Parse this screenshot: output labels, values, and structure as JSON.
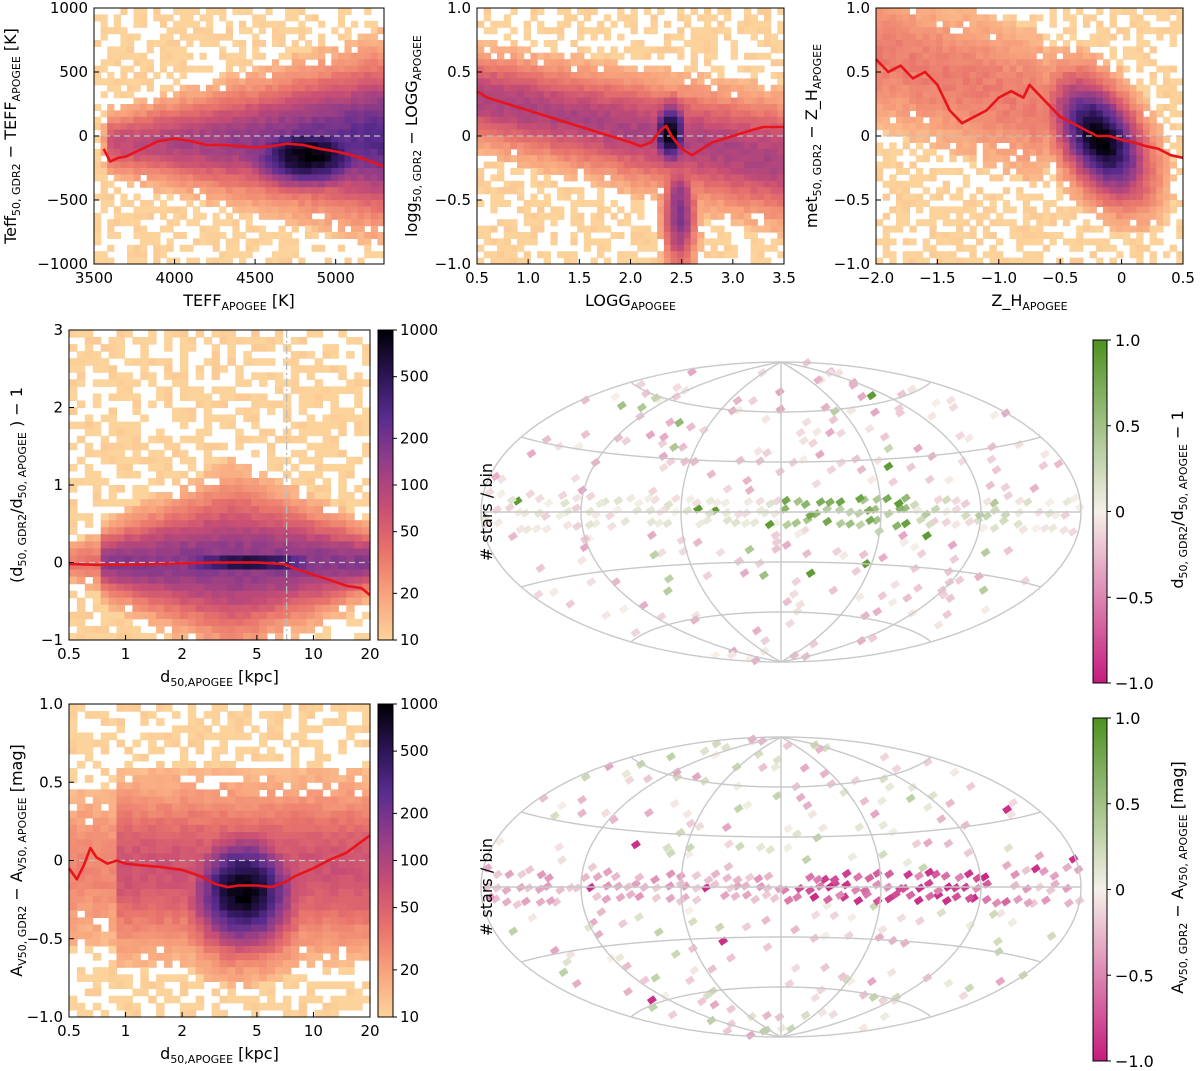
{
  "colors": {
    "density_ramp": [
      "#fcd39b",
      "#f8a47d",
      "#e8736b",
      "#c84e74",
      "#943d88",
      "#5a2c8f",
      "#2b1454",
      "#000004"
    ],
    "diverging_neg": "#c51b7d",
    "diverging_mid": "#f5f0e8",
    "diverging_pos": "#4d9221",
    "trend_line": "#e8141b",
    "grid_line": "#c8c8c8"
  },
  "chart_data": [
    {
      "id": "teff",
      "type": "heatmap",
      "xlabel": "TEFF",
      "xlabel_sub": "APOGEE",
      "xlabel_unit": "[K]",
      "ylabel": "Teff",
      "ylabel_sub": "50, GDR2",
      "ylabel_rest": " − TEFF",
      "ylabel_sub2": "APOGEE",
      "ylabel_unit": "[K]",
      "xlim": [
        3500,
        5300
      ],
      "ylim": [
        -1000,
        1000
      ],
      "xticks": [
        3500,
        4000,
        4500,
        5000
      ],
      "xtick_labels": [
        "3500",
        "4000",
        "4500",
        "5000"
      ],
      "yticks": [
        -1000,
        -500,
        0,
        500,
        1000
      ],
      "ytick_labels": [
        "−1000",
        "−500",
        "0",
        "500",
        "1000"
      ],
      "trend": {
        "x": [
          3560,
          3600,
          3650,
          3700,
          3800,
          3900,
          4000,
          4100,
          4200,
          4300,
          4400,
          4500,
          4600,
          4700,
          4800,
          4900,
          5000,
          5100,
          5200,
          5300
        ],
        "y": [
          -100,
          -200,
          -170,
          -160,
          -100,
          -40,
          -20,
          -40,
          -70,
          -70,
          -80,
          -90,
          -80,
          -60,
          -70,
          -100,
          -120,
          -150,
          -190,
          -240
        ]
      }
    },
    {
      "id": "logg",
      "type": "heatmap",
      "xlabel": "LOGG",
      "xlabel_sub": "APOGEE",
      "xlabel_unit": "",
      "ylabel": "logg",
      "ylabel_sub": "50, GDR2",
      "ylabel_rest": " − LOGG",
      "ylabel_sub2": "APOGEE",
      "ylabel_unit": "",
      "xlim": [
        0.5,
        3.5
      ],
      "ylim": [
        -1.0,
        1.0
      ],
      "xticks": [
        0.5,
        1.0,
        1.5,
        2.0,
        2.5,
        3.0,
        3.5
      ],
      "xtick_labels": [
        "0.5",
        "1.0",
        "1.5",
        "2.0",
        "2.5",
        "3.0",
        "3.5"
      ],
      "yticks": [
        -1.0,
        -0.5,
        0,
        0.5,
        1.0
      ],
      "ytick_labels": [
        "−1.0",
        "−0.5",
        "0",
        "0.5",
        "1.0"
      ],
      "trend": {
        "x": [
          0.5,
          0.6,
          0.8,
          1.0,
          1.2,
          1.4,
          1.6,
          1.8,
          2.0,
          2.1,
          2.2,
          2.3,
          2.35,
          2.4,
          2.5,
          2.6,
          2.7,
          2.8,
          3.0,
          3.2,
          3.3,
          3.5
        ],
        "y": [
          0.35,
          0.3,
          0.25,
          0.2,
          0.15,
          0.1,
          0.05,
          0.0,
          -0.05,
          -0.08,
          -0.05,
          0.05,
          0.08,
          0.0,
          -0.1,
          -0.15,
          -0.1,
          -0.05,
          0.0,
          0.05,
          0.07,
          0.07
        ]
      }
    },
    {
      "id": "met",
      "type": "heatmap",
      "xlabel": "Z_H",
      "xlabel_sub": "APOGEE",
      "xlabel_unit": "",
      "ylabel": "met",
      "ylabel_sub": "50, GDR2",
      "ylabel_rest": " − Z_H",
      "ylabel_sub2": "APOGEE",
      "ylabel_unit": "",
      "xlim": [
        -2.0,
        0.5
      ],
      "ylim": [
        -1.0,
        1.0
      ],
      "xticks": [
        -2.0,
        -1.5,
        -1.0,
        -0.5,
        0,
        0.5
      ],
      "xtick_labels": [
        "−2.0",
        "−1.5",
        "−1.0",
        "−0.5",
        "0",
        "0.5"
      ],
      "yticks": [
        -1.0,
        -0.5,
        0,
        0.5,
        1.0
      ],
      "ytick_labels": [
        "−1.0",
        "−0.5",
        "0",
        "0.5",
        "1.0"
      ],
      "trend": {
        "x": [
          -2.0,
          -1.9,
          -1.8,
          -1.7,
          -1.6,
          -1.5,
          -1.4,
          -1.3,
          -1.2,
          -1.1,
          -1.0,
          -0.9,
          -0.8,
          -0.75,
          -0.7,
          -0.6,
          -0.5,
          -0.4,
          -0.3,
          -0.2,
          -0.1,
          0.0,
          0.1,
          0.2,
          0.3,
          0.4,
          0.5
        ],
        "y": [
          0.6,
          0.5,
          0.55,
          0.45,
          0.5,
          0.4,
          0.2,
          0.1,
          0.15,
          0.2,
          0.3,
          0.35,
          0.3,
          0.4,
          0.35,
          0.25,
          0.15,
          0.1,
          0.05,
          0.0,
          0.0,
          -0.03,
          -0.05,
          -0.08,
          -0.1,
          -0.15,
          -0.17
        ]
      }
    },
    {
      "id": "dist",
      "type": "heatmap",
      "xlabel": "d",
      "xlabel_sub": "50,APOGEE",
      "xlabel_unit": "[kpc]",
      "ylabel": "(d",
      "ylabel_sub": "50, GDR2",
      "ylabel_rest": "/d",
      "ylabel_sub2": "50, APOGEE",
      "ylabel_unit": ") − 1",
      "xscale": "log",
      "xlim": [
        0.5,
        20
      ],
      "ylim": [
        -1,
        3
      ],
      "xticks": [
        0.5,
        1,
        2,
        5,
        10,
        20
      ],
      "xtick_labels": [
        "0.5",
        "1",
        "2",
        "5",
        "10",
        "20"
      ],
      "yticks": [
        -1,
        0,
        1,
        2,
        3
      ],
      "ytick_labels": [
        "−1",
        "0",
        "1",
        "2",
        "3"
      ],
      "vline": 7.2,
      "trend": {
        "x": [
          0.5,
          0.7,
          1,
          1.5,
          2,
          3,
          4,
          5,
          6,
          7,
          8,
          9,
          10,
          12,
          15,
          18,
          20
        ],
        "y": [
          -0.02,
          -0.03,
          -0.03,
          -0.02,
          -0.01,
          0.0,
          0.0,
          0.0,
          -0.01,
          -0.02,
          -0.08,
          -0.12,
          -0.16,
          -0.22,
          -0.3,
          -0.33,
          -0.42
        ]
      },
      "colorbar": {
        "scale": "log",
        "range": [
          10,
          1000
        ],
        "ticks": [
          10,
          20,
          50,
          100,
          200,
          500,
          1000
        ],
        "tick_labels": [
          "10",
          "20",
          "50",
          "100",
          "200",
          "500",
          "1000"
        ]
      }
    },
    {
      "id": "av",
      "type": "heatmap",
      "xlabel": "d",
      "xlabel_sub": "50,APOGEE",
      "xlabel_unit": "[kpc]",
      "ylabel": "A",
      "ylabel_sub": "V50, GDR2",
      "ylabel_rest": " − A",
      "ylabel_sub2": "V50, APOGEE",
      "ylabel_unit": "[mag]",
      "xscale": "log",
      "xlim": [
        0.5,
        20
      ],
      "ylim": [
        -1.0,
        1.0
      ],
      "xticks": [
        0.5,
        1,
        2,
        5,
        10,
        20
      ],
      "xtick_labels": [
        "0.5",
        "1",
        "2",
        "5",
        "10",
        "20"
      ],
      "yticks": [
        -1.0,
        -0.5,
        0,
        0.5,
        1.0
      ],
      "ytick_labels": [
        "−1.0",
        "−0.5",
        "0",
        "0.5",
        "1.0"
      ],
      "trend": {
        "x": [
          0.5,
          0.55,
          0.6,
          0.65,
          0.7,
          0.8,
          0.9,
          1.0,
          1.2,
          1.5,
          2,
          2.5,
          3,
          3.5,
          4,
          5,
          6,
          7,
          8,
          10,
          12,
          15,
          18,
          20
        ],
        "y": [
          -0.05,
          -0.12,
          -0.03,
          0.08,
          0.02,
          -0.02,
          0.0,
          -0.02,
          -0.03,
          -0.04,
          -0.06,
          -0.1,
          -0.15,
          -0.17,
          -0.16,
          -0.16,
          -0.17,
          -0.14,
          -0.1,
          -0.05,
          0.0,
          0.05,
          0.12,
          0.16
        ]
      },
      "colorbar": {
        "scale": "log",
        "range": [
          10,
          1000
        ],
        "ticks": [
          10,
          20,
          50,
          100,
          200,
          500,
          1000
        ],
        "tick_labels": [
          "10",
          "20",
          "50",
          "100",
          "200",
          "500",
          "1000"
        ]
      }
    },
    {
      "id": "sky-dist",
      "type": "heatmap",
      "projection": "aitoff",
      "side_label": "# stars / bin",
      "colorbar": {
        "scale": "linear",
        "range": [
          -1.0,
          1.0
        ],
        "ticks": [
          -1.0,
          -0.5,
          0,
          0.5,
          1.0
        ],
        "tick_labels": [
          "−1.0",
          "−0.5",
          "0",
          "0.5",
          "1.0"
        ],
        "label": "d",
        "label_sub": "50, GDR2",
        "label_rest": "/d",
        "label_sub2": "50, APOGEE",
        "label_unit": " − 1"
      }
    },
    {
      "id": "sky-av",
      "type": "heatmap",
      "projection": "aitoff",
      "side_label": "# stars / bin",
      "colorbar": {
        "scale": "linear",
        "range": [
          -1.0,
          1.0
        ],
        "ticks": [
          -1.0,
          -0.5,
          0,
          0.5,
          1.0
        ],
        "tick_labels": [
          "−1.0",
          "−0.5",
          "0",
          "0.5",
          "1.0"
        ],
        "label": "A",
        "label_sub": "V50, GDR2",
        "label_rest": " − A",
        "label_sub2": "V50, APOGEE",
        "label_unit": "[mag]"
      }
    }
  ]
}
